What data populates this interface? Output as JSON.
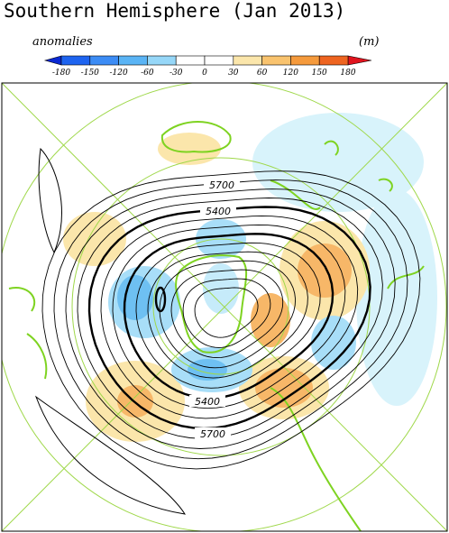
{
  "header": {
    "title": "Southern Hemisphere (Jan 2013)",
    "left_label": "anomalies",
    "right_label": "(m)"
  },
  "colorbar": {
    "labels": [
      -180,
      -150,
      -120,
      -60,
      -30,
      0,
      30,
      60,
      120,
      150,
      180
    ]
  },
  "map": {
    "contour_labels": [
      "5700",
      "5400",
      "5400",
      "5700"
    ]
  }
}
